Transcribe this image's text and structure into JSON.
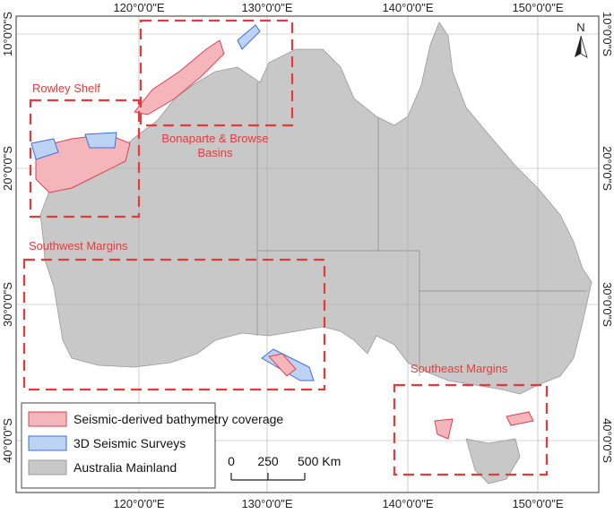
{
  "longitude_labels": [
    "120°0'0\"E",
    "130°0'0\"E",
    "140°0'0\"E",
    "150°0'0\"E"
  ],
  "latitude_labels": [
    "10°0'0\"S",
    "20°0'0\"S",
    "30°0'0\"S",
    "40°0'0\"S"
  ],
  "north_label": "N",
  "regions": [
    {
      "label_lines": [
        "Rowley Shelf"
      ]
    },
    {
      "label_lines": [
        "Bonaparte & Browse",
        "Basins"
      ]
    },
    {
      "label_lines": [
        "Southwest Margins"
      ]
    },
    {
      "label_lines": [
        "Southeast Margins"
      ]
    }
  ],
  "legend": [
    "Seismic-derived bathymetry coverage",
    "3D Seismic Surveys",
    "Australia Mainland"
  ],
  "scale_bar": [
    "0",
    "250",
    "500 Km"
  ]
}
